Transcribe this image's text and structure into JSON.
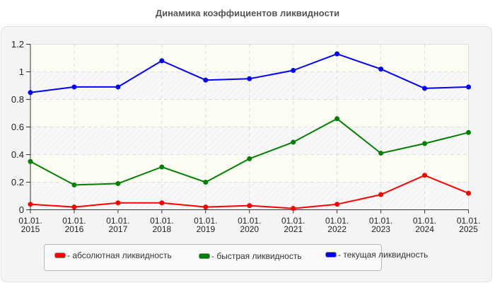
{
  "chart_data": {
    "type": "line",
    "title": "Динамика коэффициентов ликвидности",
    "xlabel": "",
    "ylabel": "",
    "x_line1": [
      "01.01.",
      "01.01.",
      "01.01.",
      "01.01.",
      "01.01.",
      "01.01.",
      "01.01.",
      "01.01.",
      "01.01.",
      "01.01.",
      "01.01."
    ],
    "categories": [
      "01.01. 2015",
      "01.01. 2016",
      "01.01. 2017",
      "01.01. 2018",
      "01.01. 2019",
      "01.01. 2020",
      "01.01. 2021",
      "01.01. 2022",
      "01.01. 2023",
      "01.01. 2024",
      "01.01. 2025"
    ],
    "years": [
      "2015",
      "2016",
      "2017",
      "2018",
      "2019",
      "2020",
      "2021",
      "2022",
      "2023",
      "2024",
      "2025"
    ],
    "ylim": [
      0,
      1.2
    ],
    "yticks": [
      "0",
      "0.2",
      "0.4",
      "0.6",
      "0.8",
      "1",
      "1.2"
    ],
    "grid": true,
    "legend_position": "bottom",
    "series": [
      {
        "name": "абсолютная ликвидность",
        "color": "#ff0000",
        "values": [
          0.04,
          0.02,
          0.05,
          0.05,
          0.02,
          0.03,
          0.01,
          0.04,
          0.11,
          0.25,
          0.12
        ]
      },
      {
        "name": "быстрая ликвидность",
        "color": "#008000",
        "values": [
          0.35,
          0.18,
          0.19,
          0.31,
          0.2,
          0.37,
          0.49,
          0.66,
          0.41,
          0.48,
          0.56
        ]
      },
      {
        "name": "текущая ликвидность",
        "color": "#0000ff",
        "values": [
          0.85,
          0.89,
          0.89,
          1.08,
          0.94,
          0.95,
          1.01,
          1.13,
          1.02,
          0.88,
          0.89
        ]
      }
    ]
  },
  "legend": {
    "items": [
      {
        "label": "- абсолютная ликвидность",
        "color": "#ff0000"
      },
      {
        "label": "- быстрая ликвидность",
        "color": "#008000"
      },
      {
        "label": "- текущая ликвидность",
        "color": "#0000ff"
      }
    ]
  }
}
